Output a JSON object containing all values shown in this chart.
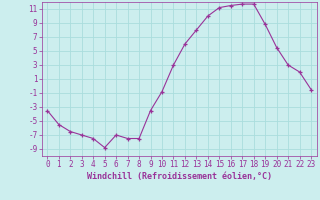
{
  "x": [
    0,
    1,
    2,
    3,
    4,
    5,
    6,
    7,
    8,
    9,
    10,
    11,
    12,
    13,
    14,
    15,
    16,
    17,
    18,
    19,
    20,
    21,
    22,
    23
  ],
  "y": [
    -3.5,
    -5.5,
    -6.5,
    -7.0,
    -7.5,
    -8.8,
    -7.0,
    -7.5,
    -7.5,
    -3.5,
    -0.8,
    3.0,
    6.0,
    8.0,
    10.0,
    11.2,
    11.5,
    11.7,
    11.7,
    8.8,
    5.5,
    3.0,
    2.0,
    -0.5
  ],
  "line_color": "#993399",
  "marker": "+",
  "bg_color": "#cceeee",
  "grid_color": "#aadddd",
  "tick_label_color": "#993399",
  "xlabel": "Windchill (Refroidissement éolien,°C)",
  "xlabel_color": "#993399",
  "xlim": [
    -0.5,
    23.5
  ],
  "ylim": [
    -10,
    12
  ],
  "yticks": [
    -9,
    -7,
    -5,
    -3,
    -1,
    1,
    3,
    5,
    7,
    9,
    11
  ],
  "xticks": [
    0,
    1,
    2,
    3,
    4,
    5,
    6,
    7,
    8,
    9,
    10,
    11,
    12,
    13,
    14,
    15,
    16,
    17,
    18,
    19,
    20,
    21,
    22,
    23
  ],
  "tick_fontsize": 5.5,
  "xlabel_fontsize": 6.0,
  "linewidth": 0.8,
  "markersize": 3.5,
  "markeredgewidth": 0.9
}
